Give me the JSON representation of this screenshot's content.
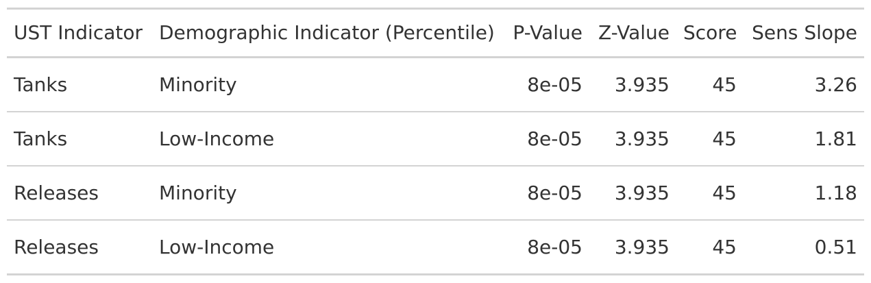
{
  "table": {
    "headers": [
      "UST Indicator",
      "Demographic Indicator (Percentile)",
      "P-Value",
      "Z-Value",
      "Score",
      "Sens Slope"
    ],
    "rows": [
      [
        "Tanks",
        "Minority",
        "8e-05",
        "3.935",
        "45",
        "3.26"
      ],
      [
        "Tanks",
        "Low-Income",
        "8e-05",
        "3.935",
        "45",
        "1.81"
      ],
      [
        "Releases",
        "Minority",
        "8e-05",
        "3.935",
        "45",
        "1.18"
      ],
      [
        "Releases",
        "Low-Income",
        "8e-05",
        "3.935",
        "45",
        "0.51"
      ]
    ]
  }
}
